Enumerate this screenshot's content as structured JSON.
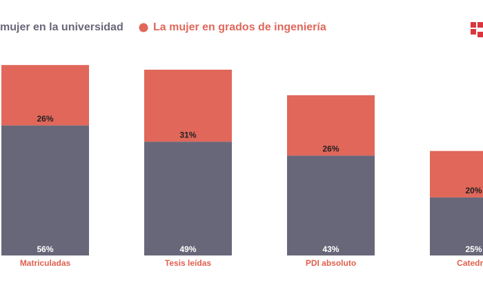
{
  "chart_data": {
    "type": "bar",
    "stacked": true,
    "categories": [
      "Matriculadas",
      "Tesis leídas",
      "PDI absoluto",
      "Catedrát"
    ],
    "series": [
      {
        "name": "mujer en la universidad",
        "color": "#686779",
        "values": [
          56,
          49,
          43,
          25
        ],
        "value_labels": [
          "56%",
          "49%",
          "43%",
          "25%"
        ]
      },
      {
        "name": "La mujer en grados de ingeniería",
        "color": "#e0675a",
        "values": [
          26,
          31,
          26,
          20
        ],
        "value_labels": [
          "26%",
          "31%",
          "26%",
          "20%"
        ]
      }
    ],
    "ylim": [
      0,
      110
    ]
  }
}
